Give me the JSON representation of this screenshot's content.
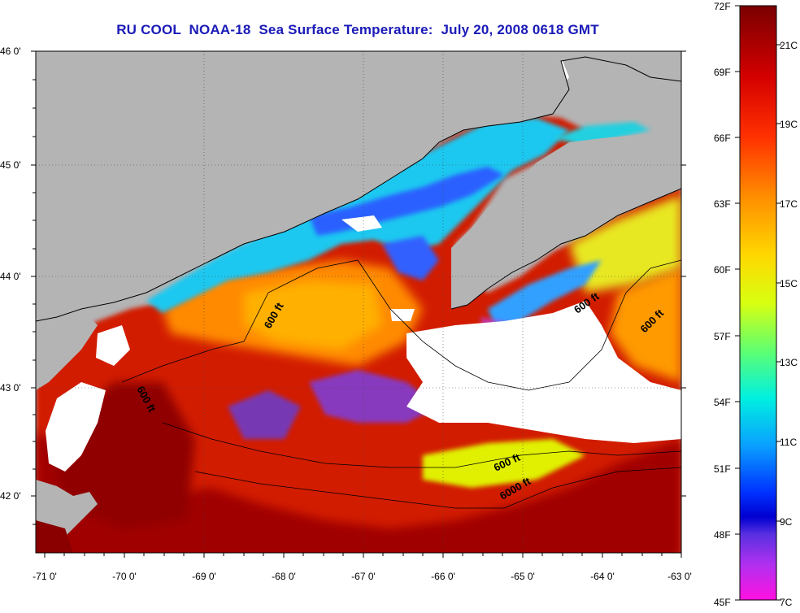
{
  "title": "RU COOL  NOAA-18  Sea Surface Temperature:  July 20, 2008 0618 GMT",
  "map": {
    "lat_ticks": [
      "46 0'",
      "45 0'",
      "44 0'",
      "43 0'",
      "42 0'"
    ],
    "lon_ticks": [
      "-71 0'",
      "-70 0'",
      "-69 0'",
      "-68 0'",
      "-67 0'",
      "-66 0'",
      "-65 0'",
      "-64 0'",
      "-63 0'"
    ],
    "isobath_labels": [
      "600 ft",
      "600 ft",
      "600 ft",
      "600 ft",
      "600 ft",
      "6000 ft"
    ],
    "colors": {
      "land": "#b4b4b4",
      "cloud": "#ffffff",
      "coast": "#000000"
    }
  },
  "colorbar": {
    "f_labels": [
      "72F",
      "69F",
      "66F",
      "63F",
      "60F",
      "57F",
      "54F",
      "51F",
      "48F",
      "45F"
    ],
    "c_labels": [
      "21C",
      "19C",
      "17C",
      "15C",
      "13C",
      "11C",
      "9C",
      "7C"
    ],
    "range_f": [
      45,
      72
    ],
    "range_c": [
      7,
      22
    ]
  }
}
